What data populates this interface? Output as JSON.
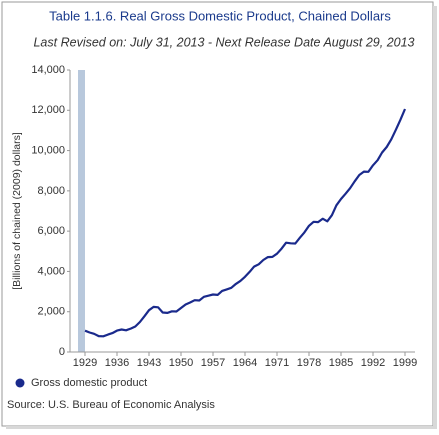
{
  "chart_data": {
    "type": "line",
    "title": "Table 1.1.6. Real Gross Domestic Product, Chained Dollars",
    "subtitle": "Last Revised on: July 31, 2013 - Next Release Date August 29, 2013",
    "y_label": "[Billions of chained (2009) dollars]",
    "source": "Source: U.S. Bureau of Economic Analysis",
    "x": [
      1929,
      1930,
      1931,
      1932,
      1933,
      1934,
      1935,
      1936,
      1937,
      1938,
      1939,
      1940,
      1941,
      1942,
      1943,
      1944,
      1945,
      1946,
      1947,
      1948,
      1949,
      1950,
      1951,
      1952,
      1953,
      1954,
      1955,
      1956,
      1957,
      1958,
      1959,
      1960,
      1961,
      1962,
      1963,
      1964,
      1965,
      1966,
      1967,
      1968,
      1969,
      1970,
      1971,
      1972,
      1973,
      1974,
      1975,
      1976,
      1977,
      1978,
      1979,
      1980,
      1981,
      1982,
      1983,
      1984,
      1985,
      1986,
      1987,
      1988,
      1989,
      1990,
      1991,
      1992,
      1993,
      1994,
      1995,
      1996,
      1997,
      1998,
      1999
    ],
    "series": [
      {
        "name": "Gross domestic product",
        "color": "#1a2a8c",
        "values": [
          1057,
          967,
          905,
          788,
          778,
          862,
          939,
          1061,
          1115,
          1078,
          1164,
          1266,
          1490,
          1772,
          2074,
          2239,
          2218,
          1961,
          1939,
          2020,
          2009,
          2184,
          2360,
          2456,
          2571,
          2557,
          2739,
          2797,
          2856,
          2835,
          3031,
          3109,
          3188,
          3383,
          3530,
          3734,
          3977,
          4238,
          4355,
          4569,
          4713,
          4722,
          4878,
          5134,
          5424,
          5396,
          5385,
          5675,
          5937,
          6267,
          6466,
          6450,
          6618,
          6491,
          6792,
          7285,
          7594,
          7861,
          8133,
          8475,
          8786,
          8955,
          8948,
          9267,
          9521,
          9905,
          10175,
          10561,
          11035,
          11526,
          12066
        ]
      }
    ],
    "xlim": [
      1929,
      1999
    ],
    "xticks": [
      1929,
      1936,
      1943,
      1950,
      1957,
      1964,
      1971,
      1978,
      1985,
      1992,
      1999
    ],
    "ylim": [
      0,
      14000
    ],
    "yticks": [
      0,
      {
        "value": 2000,
        "label": "2,000"
      },
      {
        "value": 4000,
        "label": "4,000"
      },
      {
        "value": 6000,
        "label": "6,000"
      },
      {
        "value": 8000,
        "label": "8,000"
      },
      {
        "value": 10000,
        "label": "10,000"
      },
      {
        "value": 12000,
        "label": "12,000"
      },
      {
        "value": 14000,
        "label": "14,000"
      }
    ],
    "grid": false
  }
}
